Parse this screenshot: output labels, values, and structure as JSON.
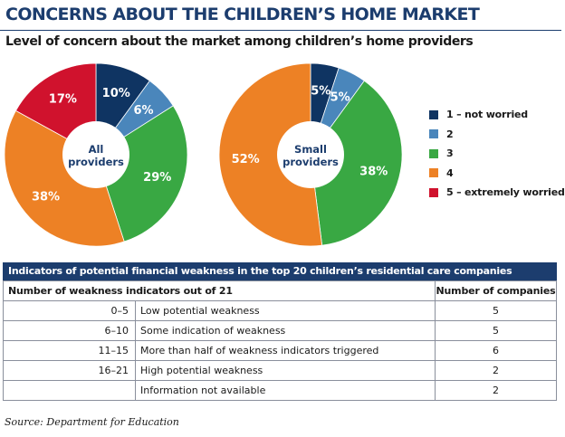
{
  "title": "CONCERNS ABOUT THE CHILDREN’S HOME MARKET",
  "subtitle": "Level of concern about the market among children’s home providers",
  "colors": {
    "navy": "#1c3d6e",
    "level1": "#0f3462",
    "level2": "#4a86bb",
    "level3": "#39a843",
    "level4": "#ed8125",
    "level5": "#d0122d"
  },
  "chart_data": {
    "type": "pie",
    "variant": "donut",
    "categories": [
      "1 – not worried",
      "2",
      "3",
      "4",
      "5 – extremely worried"
    ],
    "series": [
      {
        "name": "All providers",
        "center_lines": [
          "All",
          "providers"
        ],
        "values": [
          10,
          6,
          29,
          38,
          17
        ],
        "labels": [
          "10%",
          "6%",
          "29%",
          "38%",
          "17%"
        ]
      },
      {
        "name": "Small providers",
        "center_lines": [
          "Small",
          "providers"
        ],
        "values": [
          5,
          5,
          38,
          52,
          0
        ],
        "labels": [
          "5%",
          "5%",
          "38%",
          "52%",
          ""
        ]
      }
    ],
    "legend_position": "right",
    "unit": "%"
  },
  "legend": [
    {
      "label": "1 – not worried",
      "color": "#0f3462"
    },
    {
      "label": "2",
      "color": "#4a86bb"
    },
    {
      "label": "3",
      "color": "#39a843"
    },
    {
      "label": "4",
      "color": "#ed8125"
    },
    {
      "label": "5 – extremely worried",
      "color": "#d0122d"
    }
  ],
  "table": {
    "title": "Indicators of potential financial weakness in the top 20 children’s residential care companies",
    "col1_header": "Number of weakness indicators out of 21",
    "col3_header": "Number of companies",
    "rows": [
      {
        "range": "0–5",
        "description": "Low potential weakness",
        "count": "5"
      },
      {
        "range": "6–10",
        "description": "Some indication of weakness",
        "count": "5"
      },
      {
        "range": "11–15",
        "description": "More than half of weakness indicators triggered",
        "count": "6"
      },
      {
        "range": "16–21",
        "description": "High potential weakness",
        "count": "2"
      },
      {
        "range": "",
        "description": "Information not available",
        "count": "2"
      }
    ]
  },
  "source": "Source: Department for Education"
}
